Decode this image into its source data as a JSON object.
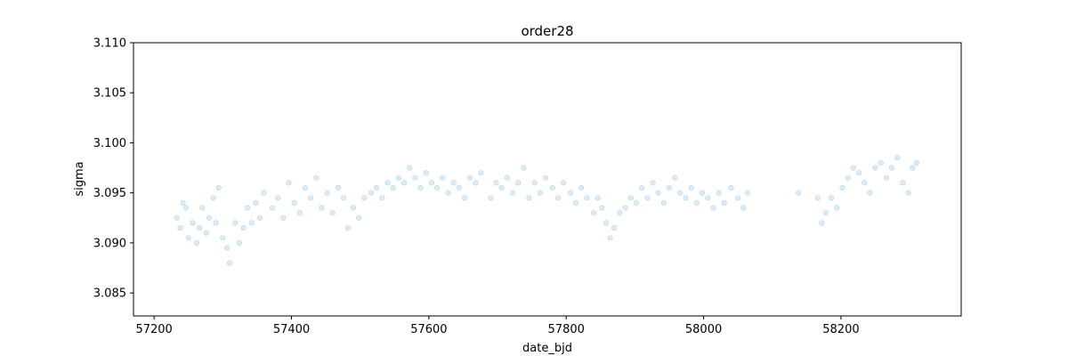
{
  "chart_data": {
    "type": "scatter",
    "title": "order28",
    "xlabel": "date_bjd",
    "ylabel": "sigma",
    "xlim": [
      57170,
      58375
    ],
    "ylim": [
      3.0827,
      3.11
    ],
    "x_ticks": [
      57200,
      57400,
      57600,
      57800,
      58000,
      58200
    ],
    "x_tick_labels": [
      "57200",
      "57400",
      "57600",
      "57800",
      "58000",
      "58200"
    ],
    "y_ticks": [
      3.085,
      3.09,
      3.095,
      3.1,
      3.105,
      3.11
    ],
    "y_tick_labels": [
      "3.085",
      "3.090",
      "3.095",
      "3.100",
      "3.105",
      "3.110"
    ],
    "grid": false,
    "marker_color": "#1f77b4",
    "marker_alpha": 0.15,
    "series": [
      {
        "points": [
          [
            57233,
            3.0925
          ],
          [
            57238,
            3.0915
          ],
          [
            57242,
            3.094
          ],
          [
            57246,
            3.0935
          ],
          [
            57250,
            3.0905
          ],
          [
            57256,
            3.092
          ],
          [
            57262,
            3.09
          ],
          [
            57266,
            3.0915
          ],
          [
            57270,
            3.0935
          ],
          [
            57276,
            3.091
          ],
          [
            57280,
            3.0925
          ],
          [
            57286,
            3.0945
          ],
          [
            57290,
            3.092
          ],
          [
            57294,
            3.0955
          ],
          [
            57300,
            3.0905
          ],
          [
            57306,
            3.0895
          ],
          [
            57310,
            3.088
          ],
          [
            57318,
            3.092
          ],
          [
            57324,
            3.09
          ],
          [
            57330,
            3.0915
          ],
          [
            57336,
            3.0935
          ],
          [
            57342,
            3.092
          ],
          [
            57348,
            3.094
          ],
          [
            57354,
            3.0925
          ],
          [
            57360,
            3.095
          ],
          [
            57372,
            3.0935
          ],
          [
            57380,
            3.0945
          ],
          [
            57388,
            3.0925
          ],
          [
            57396,
            3.096
          ],
          [
            57404,
            3.094
          ],
          [
            57412,
            3.093
          ],
          [
            57420,
            3.0955
          ],
          [
            57428,
            3.0945
          ],
          [
            57436,
            3.0965
          ],
          [
            57444,
            3.0935
          ],
          [
            57452,
            3.095
          ],
          [
            57460,
            3.093
          ],
          [
            57468,
            3.0955
          ],
          [
            57476,
            3.0945
          ],
          [
            57482,
            3.0915
          ],
          [
            57490,
            3.0935
          ],
          [
            57498,
            3.0925
          ],
          [
            57506,
            3.0945
          ],
          [
            57516,
            3.095
          ],
          [
            57524,
            3.0955
          ],
          [
            57532,
            3.0945
          ],
          [
            57540,
            3.096
          ],
          [
            57548,
            3.0955
          ],
          [
            57556,
            3.0965
          ],
          [
            57564,
            3.096
          ],
          [
            57572,
            3.0975
          ],
          [
            57580,
            3.0965
          ],
          [
            57588,
            3.0955
          ],
          [
            57596,
            3.097
          ],
          [
            57604,
            3.096
          ],
          [
            57612,
            3.0955
          ],
          [
            57620,
            3.0965
          ],
          [
            57628,
            3.095
          ],
          [
            57636,
            3.096
          ],
          [
            57644,
            3.0955
          ],
          [
            57652,
            3.0945
          ],
          [
            57660,
            3.0965
          ],
          [
            57668,
            3.096
          ],
          [
            57676,
            3.097
          ],
          [
            57690,
            3.0945
          ],
          [
            57698,
            3.096
          ],
          [
            57706,
            3.0955
          ],
          [
            57714,
            3.0965
          ],
          [
            57722,
            3.095
          ],
          [
            57730,
            3.096
          ],
          [
            57738,
            3.0975
          ],
          [
            57746,
            3.0945
          ],
          [
            57754,
            3.096
          ],
          [
            57762,
            3.095
          ],
          [
            57770,
            3.0965
          ],
          [
            57780,
            3.0955
          ],
          [
            57788,
            3.0945
          ],
          [
            57796,
            3.096
          ],
          [
            57806,
            3.095
          ],
          [
            57814,
            3.094
          ],
          [
            57822,
            3.0955
          ],
          [
            57830,
            3.0945
          ],
          [
            57840,
            3.093
          ],
          [
            57846,
            3.0945
          ],
          [
            57852,
            3.0935
          ],
          [
            57858,
            3.092
          ],
          [
            57864,
            3.0905
          ],
          [
            57870,
            3.0915
          ],
          [
            57878,
            3.093
          ],
          [
            57886,
            3.0935
          ],
          [
            57894,
            3.0945
          ],
          [
            57902,
            3.094
          ],
          [
            57910,
            3.0955
          ],
          [
            57918,
            3.0945
          ],
          [
            57926,
            3.096
          ],
          [
            57934,
            3.095
          ],
          [
            57942,
            3.094
          ],
          [
            57950,
            3.0955
          ],
          [
            57958,
            3.0965
          ],
          [
            57966,
            3.095
          ],
          [
            57974,
            3.0945
          ],
          [
            57982,
            3.0955
          ],
          [
            57990,
            3.094
          ],
          [
            57998,
            3.095
          ],
          [
            58006,
            3.0945
          ],
          [
            58014,
            3.0935
          ],
          [
            58022,
            3.095
          ],
          [
            58030,
            3.094
          ],
          [
            58040,
            3.0955
          ],
          [
            58050,
            3.0945
          ],
          [
            58058,
            3.0935
          ],
          [
            58064,
            3.095
          ],
          [
            58138,
            3.095
          ],
          [
            58166,
            3.0945
          ],
          [
            58172,
            3.092
          ],
          [
            58178,
            3.093
          ],
          [
            58186,
            3.0945
          ],
          [
            58194,
            3.0935
          ],
          [
            58202,
            3.0955
          ],
          [
            58210,
            3.0965
          ],
          [
            58218,
            3.0975
          ],
          [
            58226,
            3.097
          ],
          [
            58234,
            3.096
          ],
          [
            58242,
            3.095
          ],
          [
            58250,
            3.0975
          ],
          [
            58258,
            3.098
          ],
          [
            58266,
            3.0965
          ],
          [
            58274,
            3.0975
          ],
          [
            58282,
            3.0985
          ],
          [
            58290,
            3.096
          ],
          [
            58298,
            3.095
          ],
          [
            58304,
            3.0975
          ],
          [
            58310,
            3.098
          ]
        ]
      }
    ]
  }
}
